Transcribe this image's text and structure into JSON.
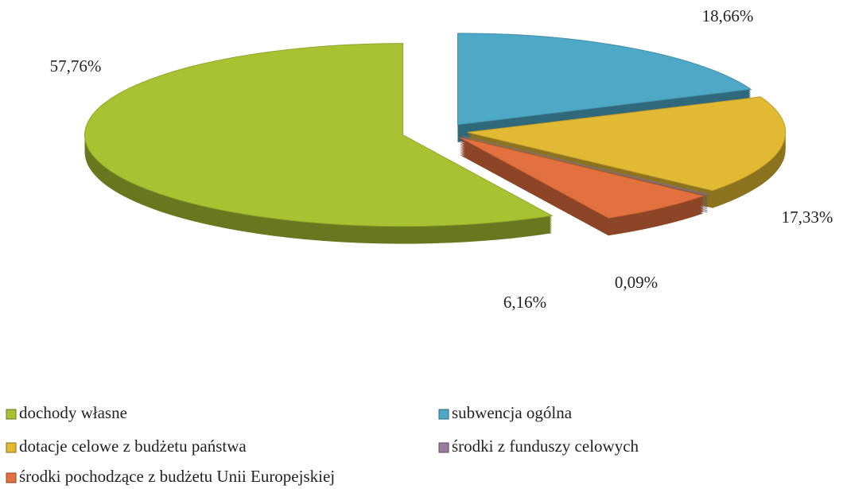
{
  "chart_data": {
    "type": "pie",
    "categories": [
      "dochody własne",
      "subwencja ogólna",
      "dotacje celowe z budżetu państwa",
      "środki z funduszy celowych",
      "środki pochodzące z budżetu Unii Europejskiej"
    ],
    "values": [
      57.76,
      18.66,
      17.33,
      0.09,
      6.16
    ],
    "value_labels": [
      "57,76%",
      "18,66%",
      "17,33%",
      "0,09%",
      "6,16%"
    ],
    "colors": [
      "#a9c232",
      "#4ea9c6",
      "#e2b932",
      "#9c7c9c",
      "#e3703f"
    ]
  }
}
